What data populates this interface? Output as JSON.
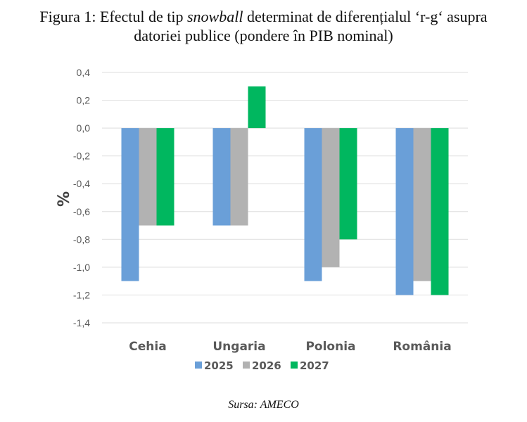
{
  "chart_data": {
    "type": "bar",
    "title_parts": {
      "prefix": "Figura 1: Efectul de tip ",
      "italic": "snowball",
      "suffix": " determinat de diferențialul ‘r-g‘ asupra",
      "line2": "datoriei publice (pondere în PIB nominal)"
    },
    "title": "Figura 1: Efectul de tip snowball determinat de diferențialul ‘r-g‘ asupra datoriei publice (pondere în PIB nominal)",
    "xlabel": "",
    "ylabel": "%",
    "ylim": [
      -1.4,
      0.4
    ],
    "yticks": [
      0.4,
      0.2,
      0.0,
      -0.2,
      -0.4,
      -0.6,
      -0.8,
      -1.0,
      -1.2,
      -1.4
    ],
    "ytick_labels": [
      "0,4",
      "0,2",
      "0,0",
      "-0,2",
      "-0,4",
      "-0,6",
      "-0,8",
      "-1,0",
      "-1,2",
      "-1,4"
    ],
    "grid": true,
    "legend_position": "bottom",
    "categories": [
      "Cehia",
      "Ungaria",
      "Polonia",
      "România"
    ],
    "series": [
      {
        "name": "2025",
        "color": "#6a9fd8",
        "values": [
          -1.1,
          -0.7,
          -1.1,
          -1.2
        ]
      },
      {
        "name": "2026",
        "color": "#b2b2b2",
        "values": [
          -0.7,
          -0.7,
          -1.0,
          -1.1
        ]
      },
      {
        "name": "2027",
        "color": "#00b75f",
        "values": [
          -0.7,
          0.3,
          -0.8,
          -1.2
        ]
      }
    ],
    "source": "Sursa: AMECO"
  }
}
